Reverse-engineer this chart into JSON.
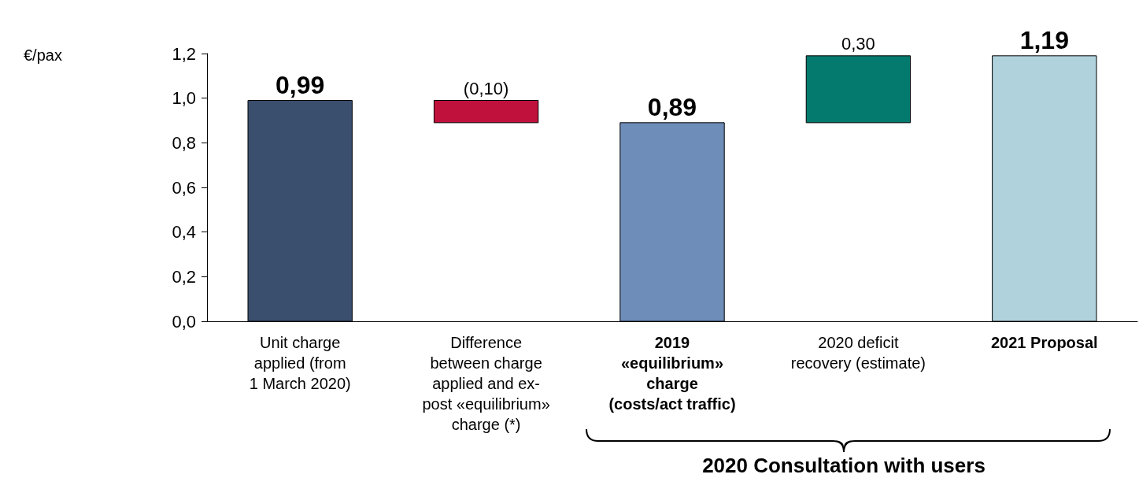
{
  "chart_data": {
    "type": "bar",
    "categories": [
      "Unit charge\napplied (from\n1 March 2020)",
      "Difference\nbetween charge\napplied and ex-\npost «equilibrium»\ncharge (*)",
      "2019\n«equilibrium»\ncharge\n(costs/act traffic)",
      "2020 deficit\nrecovery (estimate)",
      "2021 Proposal"
    ],
    "values": [
      0.99,
      -0.1,
      0.89,
      0.3,
      1.19
    ],
    "base": [
      0,
      0.99,
      0,
      0.89,
      0
    ],
    "colors": [
      "#3a4e6e",
      "#c0103c",
      "#6e8db8",
      "#047a6e",
      "#b0d2dd"
    ],
    "value_labels": [
      "0,99",
      "(0,10)",
      "0,89",
      "0,30",
      "1,19"
    ],
    "ylim": [
      0,
      1.2
    ],
    "yticks": [
      {
        "value": 0,
        "label": "0,0"
      },
      {
        "value": 0.2,
        "label": "0,2"
      },
      {
        "value": 0.4,
        "label": "0,4"
      },
      {
        "value": 0.6,
        "label": "0,6"
      },
      {
        "value": 0.8,
        "label": "0,8"
      },
      {
        "value": 1.0,
        "label": "1,0"
      },
      {
        "value": 1.2,
        "label": "1,2"
      }
    ],
    "grid": false,
    "annotations": [
      "€/pax",
      "2020 Consultation with users"
    ]
  }
}
